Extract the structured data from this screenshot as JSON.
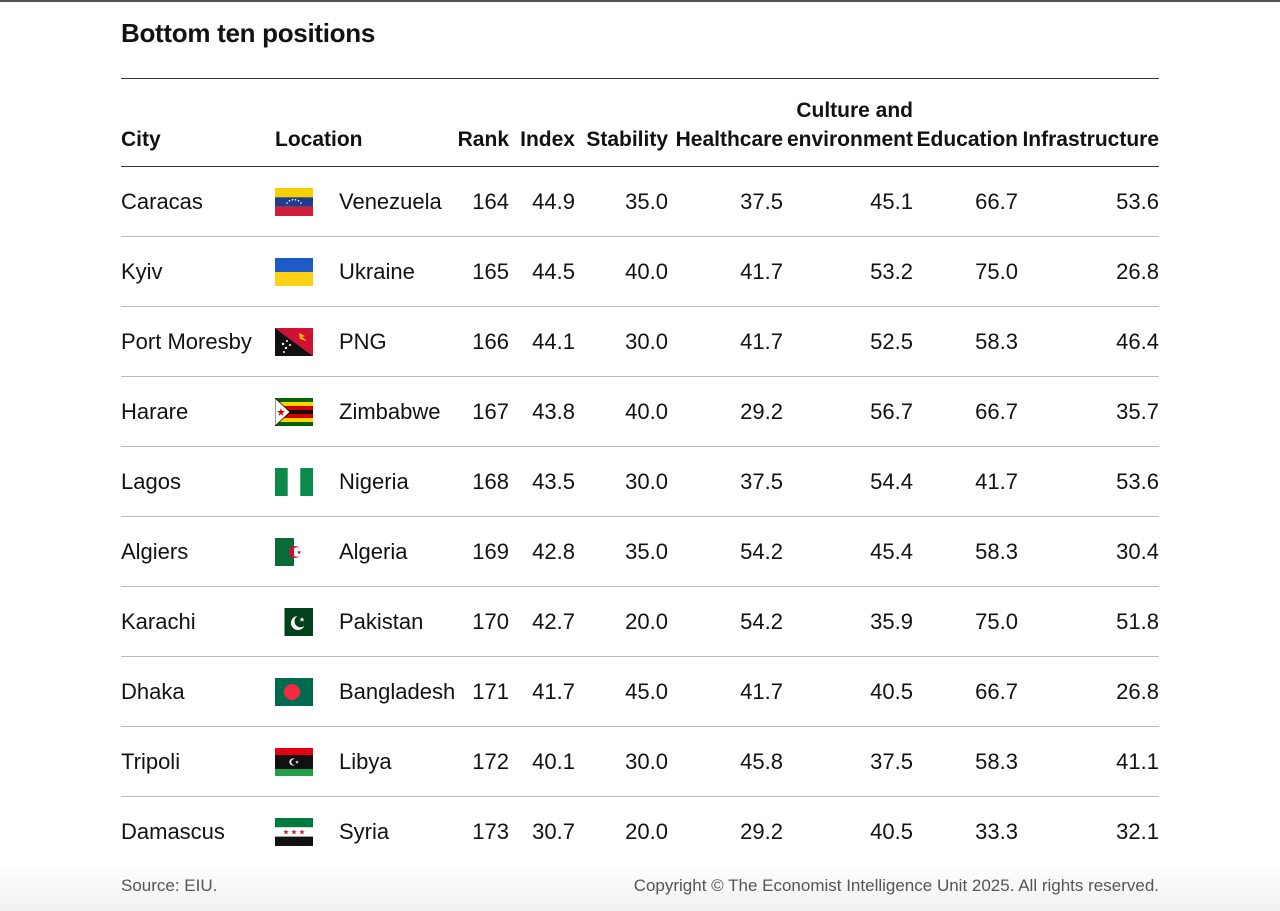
{
  "title": "Bottom ten positions",
  "columns": {
    "city": "City",
    "location": "Location",
    "rank": "Rank",
    "index": "Index",
    "stability": "Stability",
    "healthcare": "Healthcare",
    "culture_line1": "Culture and",
    "culture_line2": "environment",
    "education": "Education",
    "infrastructure": "Infrastructure"
  },
  "rows": [
    {
      "city": "Caracas",
      "location": "Venezuela",
      "flag": "venezuela-flag-icon",
      "rank": "164",
      "index": "44.9",
      "stability": "35.0",
      "healthcare": "37.5",
      "culture": "45.1",
      "education": "66.7",
      "infrastructure": "53.6"
    },
    {
      "city": "Kyiv",
      "location": "Ukraine",
      "flag": "ukraine-flag-icon",
      "rank": "165",
      "index": "44.5",
      "stability": "40.0",
      "healthcare": "41.7",
      "culture": "53.2",
      "education": "75.0",
      "infrastructure": "26.8"
    },
    {
      "city": "Port Moresby",
      "location": "PNG",
      "flag": "png-flag-icon",
      "rank": "166",
      "index": "44.1",
      "stability": "30.0",
      "healthcare": "41.7",
      "culture": "52.5",
      "education": "58.3",
      "infrastructure": "46.4"
    },
    {
      "city": "Harare",
      "location": "Zimbabwe",
      "flag": "zimbabwe-flag-icon",
      "rank": "167",
      "index": "43.8",
      "stability": "40.0",
      "healthcare": "29.2",
      "culture": "56.7",
      "education": "66.7",
      "infrastructure": "35.7"
    },
    {
      "city": "Lagos",
      "location": "Nigeria",
      "flag": "nigeria-flag-icon",
      "rank": "168",
      "index": "43.5",
      "stability": "30.0",
      "healthcare": "37.5",
      "culture": "54.4",
      "education": "41.7",
      "infrastructure": "53.6"
    },
    {
      "city": "Algiers",
      "location": "Algeria",
      "flag": "algeria-flag-icon",
      "rank": "169",
      "index": "42.8",
      "stability": "35.0",
      "healthcare": "54.2",
      "culture": "45.4",
      "education": "58.3",
      "infrastructure": "30.4"
    },
    {
      "city": "Karachi",
      "location": "Pakistan",
      "flag": "pakistan-flag-icon",
      "rank": "170",
      "index": "42.7",
      "stability": "20.0",
      "healthcare": "54.2",
      "culture": "35.9",
      "education": "75.0",
      "infrastructure": "51.8"
    },
    {
      "city": "Dhaka",
      "location": "Bangladesh",
      "flag": "bangladesh-flag-icon",
      "rank": "171",
      "index": "41.7",
      "stability": "45.0",
      "healthcare": "41.7",
      "culture": "40.5",
      "education": "66.7",
      "infrastructure": "26.8"
    },
    {
      "city": "Tripoli",
      "location": "Libya",
      "flag": "libya-flag-icon",
      "rank": "172",
      "index": "40.1",
      "stability": "30.0",
      "healthcare": "45.8",
      "culture": "37.5",
      "education": "58.3",
      "infrastructure": "41.1"
    },
    {
      "city": "Damascus",
      "location": "Syria",
      "flag": "syria-flag-icon",
      "rank": "173",
      "index": "30.7",
      "stability": "20.0",
      "healthcare": "29.2",
      "culture": "40.5",
      "education": "33.3",
      "infrastructure": "32.1"
    }
  ],
  "footer": {
    "source": "Source: EIU.",
    "copyright": "Copyright © The Economist Intelligence Unit 2025. All rights reserved."
  }
}
